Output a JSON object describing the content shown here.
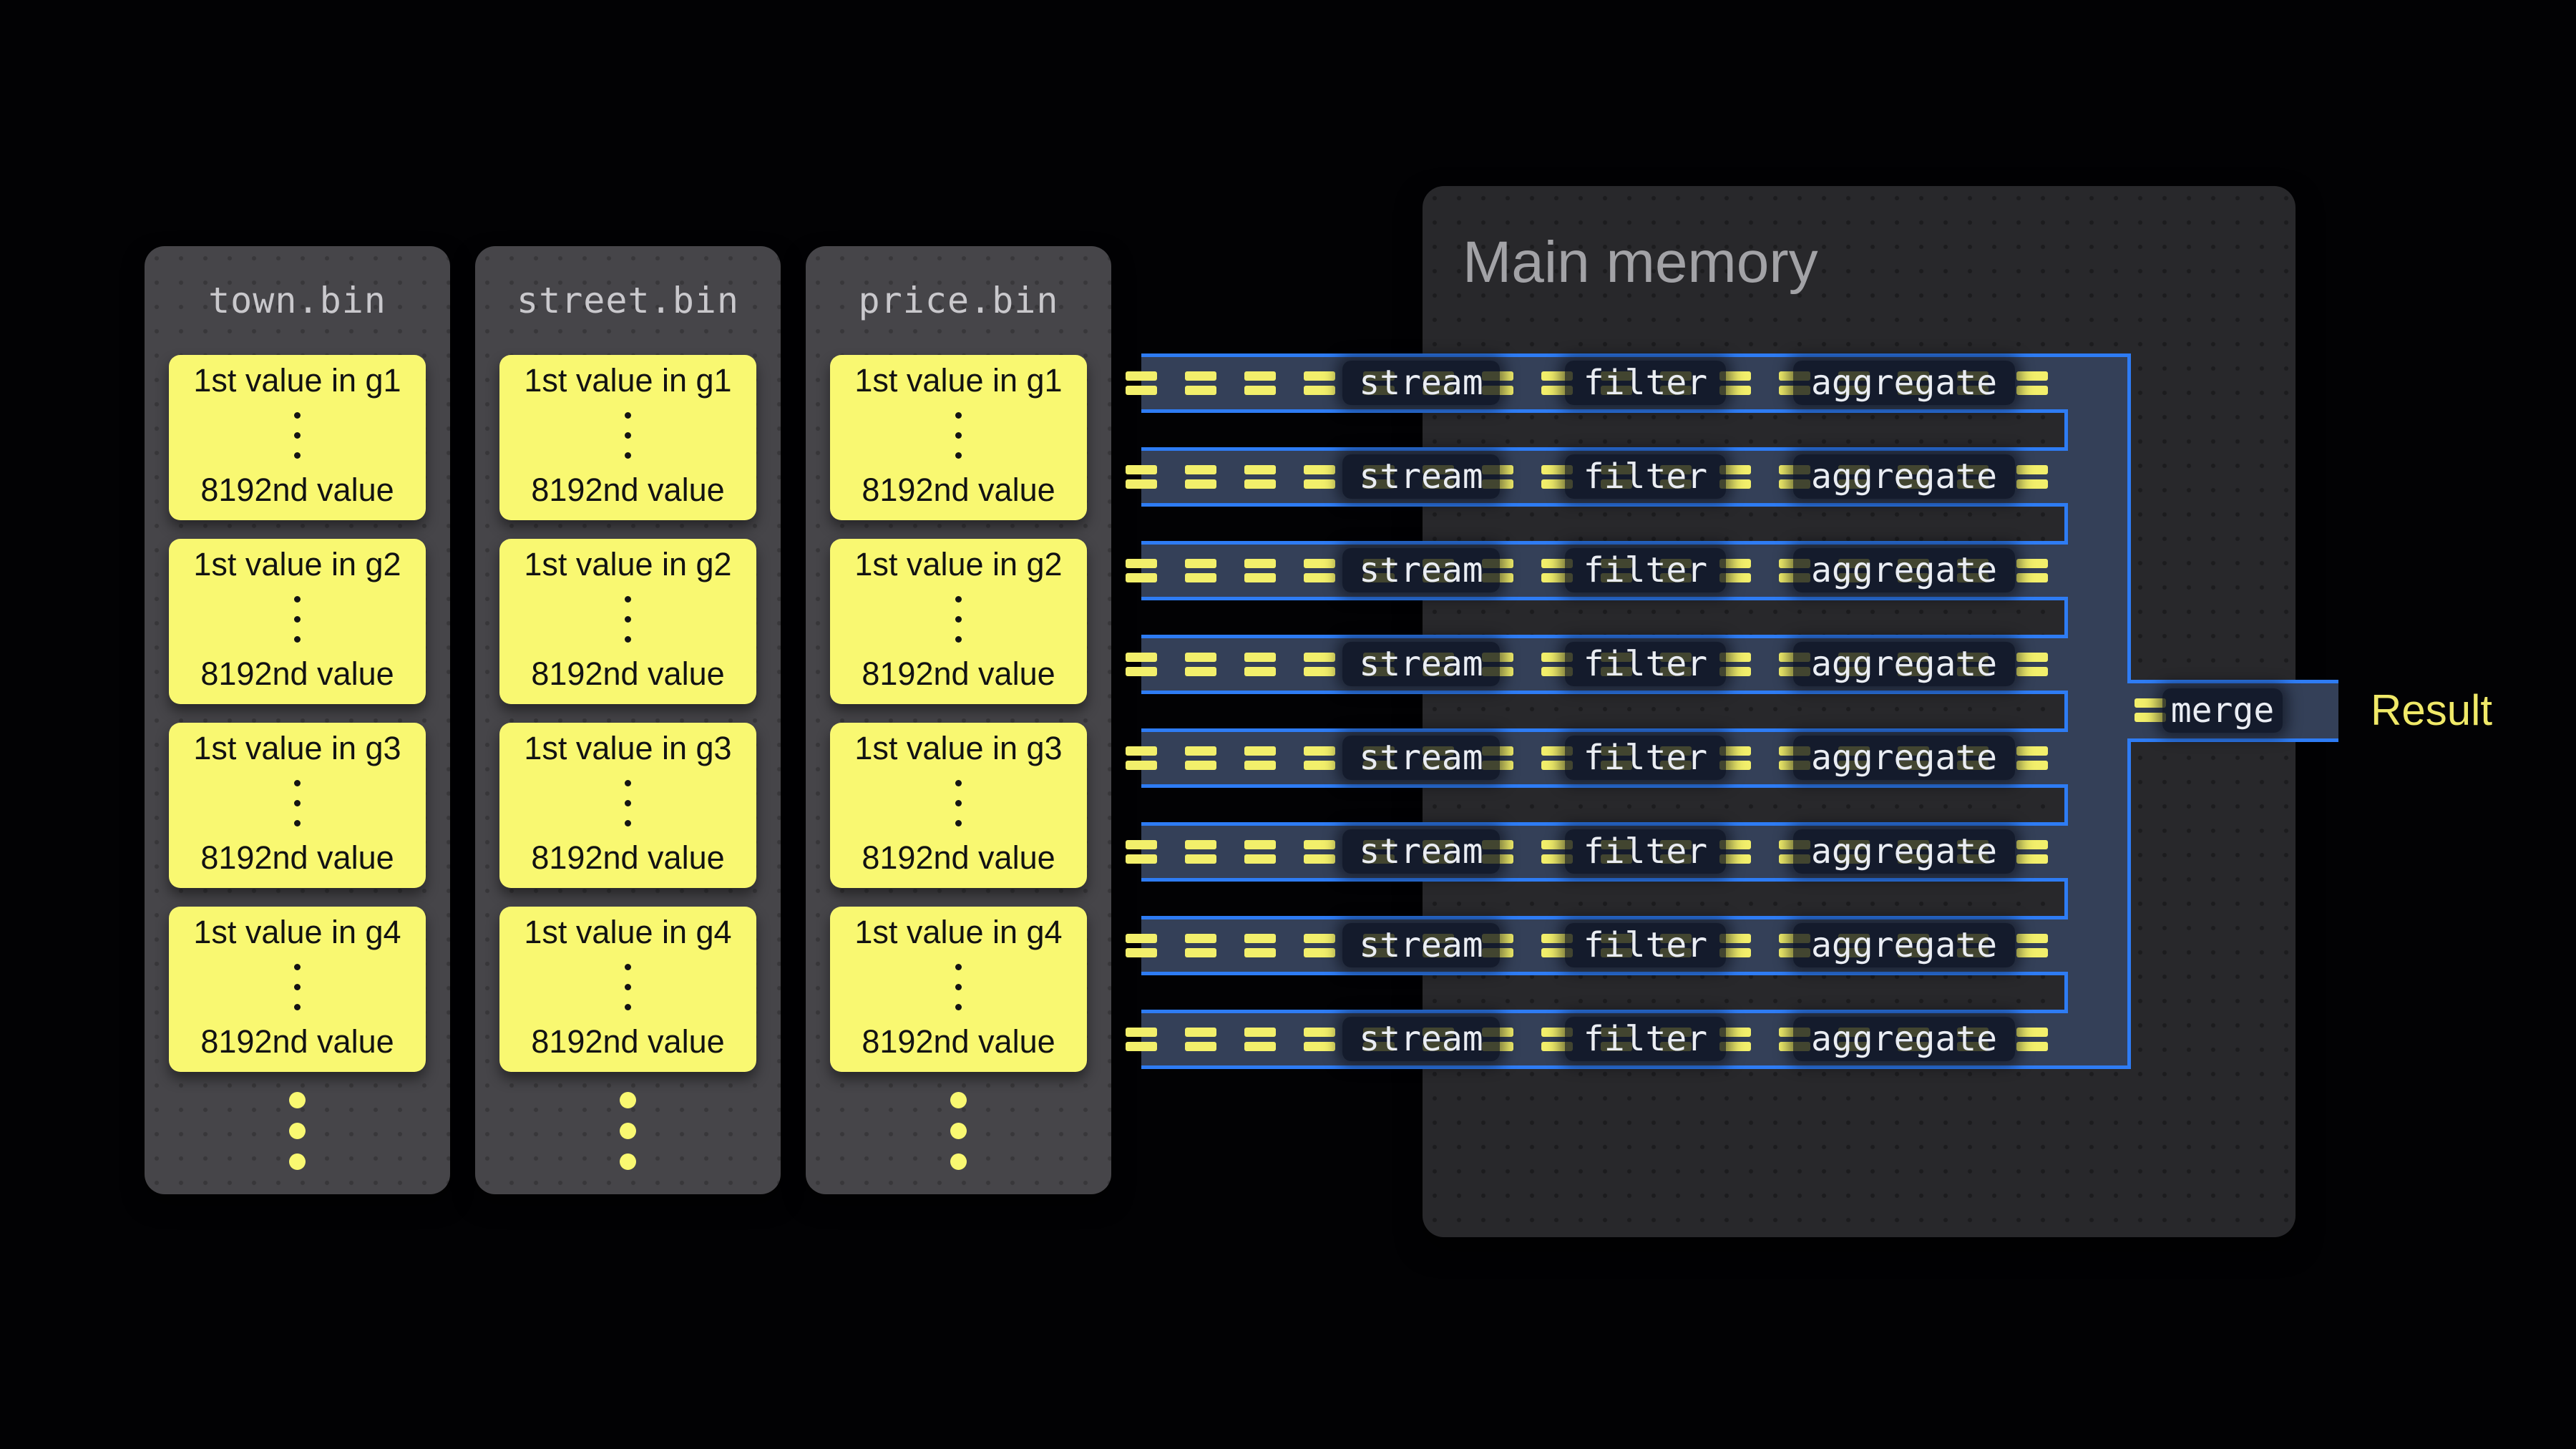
{
  "files": [
    {
      "name": "town.bin",
      "blocks": [
        {
          "top": "1st value in g1",
          "bottom": "8192nd value"
        },
        {
          "top": "1st value in g2",
          "bottom": "8192nd value"
        },
        {
          "top": "1st value in g3",
          "bottom": "8192nd value"
        },
        {
          "top": "1st value in g4",
          "bottom": "8192nd value"
        }
      ]
    },
    {
      "name": "street.bin",
      "blocks": [
        {
          "top": "1st value in g1",
          "bottom": "8192nd value"
        },
        {
          "top": "1st value in g2",
          "bottom": "8192nd value"
        },
        {
          "top": "1st value in g3",
          "bottom": "8192nd value"
        },
        {
          "top": "1st value in g4",
          "bottom": "8192nd value"
        }
      ]
    },
    {
      "name": "price.bin",
      "blocks": [
        {
          "top": "1st value in g1",
          "bottom": "8192nd value"
        },
        {
          "top": "1st value in g2",
          "bottom": "8192nd value"
        },
        {
          "top": "1st value in g3",
          "bottom": "8192nd value"
        },
        {
          "top": "1st value in g4",
          "bottom": "8192nd value"
        }
      ]
    }
  ],
  "memory": {
    "title": "Main memory"
  },
  "pipeline": {
    "rows": 8,
    "stages": [
      "stream",
      "filter",
      "aggregate"
    ]
  },
  "merge": {
    "label": "merge"
  },
  "result": {
    "label": "Result"
  },
  "colors": {
    "background": "#020204",
    "accent_blue": "#2e7cf4",
    "pipeline_fill": "#344058",
    "dash_yellow": "#f2ef6b",
    "block_yellow": "#f9f871",
    "file_panel_gray": "#464549",
    "memory_panel_gray": "#28282b",
    "result_yellow": "#f0e968"
  }
}
